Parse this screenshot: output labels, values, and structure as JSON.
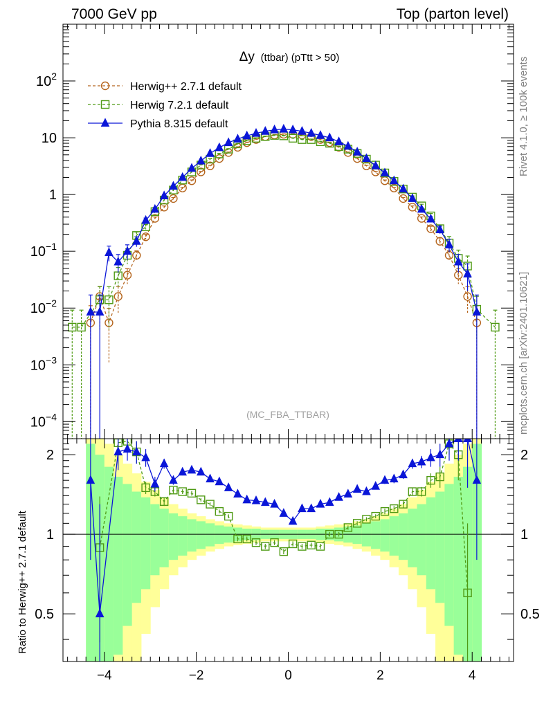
{
  "chart_data": {
    "type": "line",
    "header": {
      "left": "7000 GeV pp",
      "right": "Top (parton level)"
    },
    "title_main": "Δy",
    "title_sub": "(ttbar) (pTtt > 50)",
    "watermark": "(MC_FBA_TTBAR)",
    "side_text_top": "Rivet 4.1.0, ≥ 100k events",
    "side_text_bottom": "mcplots.cern.ch [arXiv:2401.10621]",
    "ratio_ylabel": "Ratio to Herwig++ 2.7.1 default",
    "xlim": [
      -4.9,
      4.9
    ],
    "ylim_log": [
      5e-05,
      1000
    ],
    "ratio_ylim": [
      0.33,
      2.3
    ],
    "x_ticks": [
      {
        "v": -4,
        "label": "−4"
      },
      {
        "v": -2,
        "label": "−2"
      },
      {
        "v": 0,
        "label": "0"
      },
      {
        "v": 2,
        "label": "2"
      },
      {
        "v": 4,
        "label": "4"
      }
    ],
    "y_ticks": [
      {
        "v": 100,
        "base": "10",
        "exp": "2"
      },
      {
        "v": 10,
        "base": "10",
        "exp": ""
      },
      {
        "v": 1,
        "base": "1",
        "exp": ""
      },
      {
        "v": 0.1,
        "base": "10",
        "exp": "−1"
      },
      {
        "v": 0.01,
        "base": "10",
        "exp": "−2"
      },
      {
        "v": 0.001,
        "base": "10",
        "exp": "−3"
      },
      {
        "v": 0.0001,
        "base": "10",
        "exp": "−4"
      }
    ],
    "ratio_ticks": [
      {
        "v": 2,
        "label": "2"
      },
      {
        "v": 1,
        "label": "1"
      },
      {
        "v": 0.5,
        "label": "0.5"
      }
    ],
    "series": [
      {
        "name": "Herwig++ 2.7.1 default",
        "color": "#b5651d",
        "marker": "circle",
        "dash": true,
        "x": [
          -4.3,
          -4.1,
          -3.9,
          -3.7,
          -3.5,
          -3.3,
          -3.1,
          -2.9,
          -2.7,
          -2.5,
          -2.3,
          -2.1,
          -1.9,
          -1.7,
          -1.5,
          -1.3,
          -1.1,
          -0.9,
          -0.7,
          -0.5,
          -0.3,
          -0.1,
          0.1,
          0.3,
          0.5,
          0.7,
          0.9,
          1.1,
          1.3,
          1.5,
          1.7,
          1.9,
          2.1,
          2.3,
          2.5,
          2.7,
          2.9,
          3.1,
          3.3,
          3.5,
          3.7,
          3.9,
          4.1
        ],
        "y": [
          0.0055,
          0.016,
          0.0055,
          0.016,
          0.038,
          0.085,
          0.18,
          0.38,
          0.6,
          0.85,
          1.3,
          1.75,
          2.5,
          3.2,
          4.3,
          5.5,
          6.8,
          8.2,
          9.3,
          10.5,
          11.2,
          11.5,
          11.5,
          11.2,
          10.5,
          9.3,
          8.2,
          6.8,
          5.5,
          4.3,
          3.2,
          2.5,
          1.75,
          1.3,
          0.85,
          0.6,
          0.38,
          0.25,
          0.15,
          0.085,
          0.038,
          0.016,
          0.0055
        ],
        "err": [
          1.0,
          0.5,
          0.8,
          0.5,
          0.3,
          0.2,
          0.1,
          0.06,
          0.05,
          0.04,
          0.03,
          0.03,
          0.02,
          0.02,
          0.02,
          0.02,
          0.02,
          0.02,
          0.02,
          0.02,
          0.02,
          0.02,
          0.02,
          0.02,
          0.02,
          0.02,
          0.02,
          0.02,
          0.02,
          0.02,
          0.02,
          0.02,
          0.03,
          0.03,
          0.04,
          0.05,
          0.06,
          0.1,
          0.15,
          0.2,
          0.3,
          0.5,
          1.0
        ]
      },
      {
        "name": "Herwig 7.2.1 default",
        "color": "#4f9a14",
        "marker": "square",
        "dash": true,
        "x": [
          -4.7,
          -4.5,
          -4.1,
          -3.9,
          -3.7,
          -3.5,
          -3.3,
          -3.1,
          -2.9,
          -2.7,
          -2.5,
          -2.3,
          -2.1,
          -1.9,
          -1.7,
          -1.5,
          -1.3,
          -1.1,
          -0.9,
          -0.7,
          -0.5,
          -0.3,
          -0.1,
          0.1,
          0.3,
          0.5,
          0.7,
          0.9,
          1.1,
          1.3,
          1.5,
          1.7,
          1.9,
          2.1,
          2.3,
          2.5,
          2.7,
          2.9,
          3.1,
          3.3,
          3.5,
          3.7,
          3.9,
          4.1,
          4.5
        ],
        "y": [
          0.0046,
          0.0046,
          0.014,
          0.014,
          0.037,
          0.085,
          0.19,
          0.27,
          0.5,
          0.8,
          1.2,
          1.8,
          2.5,
          3.3,
          4.2,
          5.2,
          6.3,
          7.8,
          8.9,
          9.8,
          10.5,
          11.0,
          10.8,
          9.8,
          9.3,
          9.3,
          8.5,
          8.0,
          7.0,
          6.3,
          5.3,
          4.2,
          3.3,
          2.4,
          1.7,
          1.25,
          0.9,
          0.63,
          0.42,
          0.25,
          0.14,
          0.075,
          0.055,
          0.0095,
          0.0046
        ],
        "err": [
          1.0,
          1.0,
          0.7,
          0.7,
          0.4,
          0.3,
          0.15,
          0.1,
          0.07,
          0.05,
          0.04,
          0.03,
          0.03,
          0.02,
          0.02,
          0.02,
          0.02,
          0.02,
          0.02,
          0.02,
          0.02,
          0.02,
          0.02,
          0.02,
          0.02,
          0.02,
          0.02,
          0.02,
          0.02,
          0.02,
          0.02,
          0.02,
          0.02,
          0.03,
          0.03,
          0.04,
          0.05,
          0.07,
          0.1,
          0.15,
          0.3,
          0.4,
          0.5,
          0.7,
          1.0
        ]
      },
      {
        "name": "Pythia 8.315 default",
        "color": "#0a16d8",
        "marker": "triangle",
        "dash": false,
        "x": [
          -4.3,
          -4.1,
          -3.9,
          -3.7,
          -3.5,
          -3.3,
          -3.1,
          -2.9,
          -2.7,
          -2.5,
          -2.3,
          -2.1,
          -1.9,
          -1.7,
          -1.5,
          -1.3,
          -1.1,
          -0.9,
          -0.7,
          -0.5,
          -0.3,
          -0.1,
          0.1,
          0.3,
          0.5,
          0.7,
          0.9,
          1.1,
          1.3,
          1.5,
          1.7,
          1.9,
          2.1,
          2.3,
          2.5,
          2.7,
          2.9,
          3.1,
          3.3,
          3.5,
          3.7,
          3.9,
          4.1
        ],
        "y": [
          0.0085,
          0.0085,
          0.095,
          0.065,
          0.1,
          0.15,
          0.35,
          0.55,
          0.95,
          1.4,
          2.0,
          2.9,
          3.9,
          5.3,
          6.7,
          8.2,
          9.5,
          10.8,
          12.0,
          13.0,
          13.8,
          14.2,
          13.8,
          13.0,
          12.0,
          11.0,
          10.0,
          8.5,
          7.1,
          5.6,
          4.3,
          3.2,
          2.4,
          1.75,
          1.25,
          0.85,
          0.55,
          0.37,
          0.24,
          0.13,
          0.065,
          0.04,
          0.0085
        ],
        "err": [
          1.0,
          1.0,
          0.3,
          0.35,
          0.3,
          0.2,
          0.1,
          0.07,
          0.05,
          0.04,
          0.03,
          0.03,
          0.02,
          0.02,
          0.02,
          0.02,
          0.02,
          0.02,
          0.02,
          0.02,
          0.02,
          0.02,
          0.02,
          0.02,
          0.02,
          0.02,
          0.02,
          0.02,
          0.02,
          0.02,
          0.02,
          0.02,
          0.03,
          0.03,
          0.04,
          0.05,
          0.07,
          0.1,
          0.15,
          0.25,
          0.35,
          0.5,
          1.0
        ]
      }
    ],
    "ratio_series": [
      {
        "name": "Herwig 7.2.1 default",
        "color": "#4f9a14",
        "marker": "square",
        "x": [
          -4.1,
          -3.7,
          -3.5,
          -3.3,
          -3.1,
          -2.9,
          -2.7,
          -2.5,
          -2.3,
          -2.1,
          -1.9,
          -1.7,
          -1.5,
          -1.3,
          -1.1,
          -0.9,
          -0.7,
          -0.5,
          -0.3,
          -0.1,
          0.1,
          0.3,
          0.5,
          0.7,
          0.9,
          1.1,
          1.3,
          1.5,
          1.7,
          1.9,
          2.1,
          2.3,
          2.5,
          2.7,
          2.9,
          3.1,
          3.3,
          3.5,
          3.7,
          3.9
        ],
        "y": [
          0.89,
          2.22,
          2.25,
          2.05,
          1.5,
          1.45,
          1.33,
          1.47,
          1.45,
          1.43,
          1.35,
          1.3,
          1.22,
          1.17,
          0.96,
          0.96,
          0.93,
          0.9,
          0.93,
          0.86,
          0.92,
          0.9,
          0.91,
          0.9,
          1.0,
          1.0,
          1.06,
          1.1,
          1.14,
          1.17,
          1.22,
          1.25,
          1.3,
          1.45,
          1.45,
          1.6,
          1.65,
          2.2,
          2.0,
          0.6
        ],
        "err": [
          0.5,
          0.2,
          0.2,
          0.2,
          0.08,
          0.06,
          0.05,
          0.04,
          0.03,
          0.03,
          0.02,
          0.02,
          0.02,
          0.02,
          0.02,
          0.02,
          0.02,
          0.02,
          0.02,
          0.02,
          0.02,
          0.02,
          0.02,
          0.02,
          0.02,
          0.02,
          0.02,
          0.02,
          0.02,
          0.02,
          0.03,
          0.03,
          0.04,
          0.05,
          0.06,
          0.1,
          0.15,
          0.2,
          0.4,
          0.5
        ]
      },
      {
        "name": "Pythia 8.315 default",
        "color": "#0a16d8",
        "marker": "triangle",
        "x": [
          -4.3,
          -4.1,
          -3.7,
          -3.5,
          -3.3,
          -3.1,
          -2.9,
          -2.7,
          -2.5,
          -2.3,
          -2.1,
          -1.9,
          -1.7,
          -1.5,
          -1.3,
          -1.1,
          -0.9,
          -0.7,
          -0.5,
          -0.3,
          -0.1,
          0.1,
          0.3,
          0.5,
          0.7,
          0.9,
          1.1,
          1.3,
          1.5,
          1.7,
          1.9,
          2.1,
          2.3,
          2.5,
          2.7,
          2.9,
          3.1,
          3.3,
          3.5,
          3.7,
          3.9,
          4.1
        ],
        "y": [
          1.6,
          0.5,
          2.05,
          2.1,
          2.05,
          1.95,
          1.55,
          1.85,
          1.6,
          1.72,
          1.75,
          1.72,
          1.62,
          1.58,
          1.5,
          1.42,
          1.35,
          1.34,
          1.32,
          1.3,
          1.2,
          1.12,
          1.25,
          1.25,
          1.3,
          1.32,
          1.38,
          1.42,
          1.48,
          1.45,
          1.52,
          1.6,
          1.62,
          1.68,
          1.85,
          1.88,
          1.95,
          2.0,
          2.2,
          2.3,
          2.3,
          1.6
        ],
        "err": [
          0.8,
          0.8,
          0.3,
          0.2,
          0.2,
          0.15,
          0.1,
          0.08,
          0.06,
          0.05,
          0.04,
          0.03,
          0.03,
          0.03,
          0.03,
          0.02,
          0.02,
          0.02,
          0.02,
          0.02,
          0.02,
          0.02,
          0.02,
          0.02,
          0.02,
          0.02,
          0.03,
          0.03,
          0.03,
          0.03,
          0.04,
          0.05,
          0.06,
          0.06,
          0.08,
          0.1,
          0.15,
          0.2,
          0.3,
          0.4,
          0.8,
          0.8
        ]
      }
    ],
    "uncertainty_bands": {
      "green_color": "#99ff99",
      "yellow_color": "#ffff99",
      "centers": [
        -4.3,
        -4.1,
        -3.9,
        -3.7,
        -3.5,
        -3.3,
        -3.1,
        -2.9,
        -2.7,
        -2.5,
        -2.3,
        -2.1,
        -1.9,
        -1.7,
        -1.5,
        -1.3,
        -1.1,
        -0.9,
        -0.7,
        -0.5,
        -0.3,
        -0.1,
        0.1,
        0.3,
        0.5,
        0.7,
        0.9,
        1.1,
        1.3,
        1.5,
        1.7,
        1.9,
        2.1,
        2.3,
        2.5,
        2.7,
        2.9,
        3.1,
        3.3,
        3.5,
        3.7,
        3.9,
        4.1
      ],
      "green_half": [
        1.2,
        1.0,
        0.8,
        0.65,
        0.55,
        0.45,
        0.38,
        0.3,
        0.25,
        0.2,
        0.17,
        0.14,
        0.12,
        0.1,
        0.08,
        0.07,
        0.06,
        0.05,
        0.05,
        0.04,
        0.04,
        0.04,
        0.04,
        0.04,
        0.04,
        0.05,
        0.05,
        0.06,
        0.07,
        0.08,
        0.1,
        0.12,
        0.14,
        0.17,
        0.2,
        0.25,
        0.3,
        0.38,
        0.45,
        0.55,
        0.65,
        0.8,
        1.2
      ],
      "yellow_half": [
        1.5,
        1.4,
        1.2,
        1.0,
        0.85,
        0.7,
        0.58,
        0.47,
        0.38,
        0.3,
        0.25,
        0.2,
        0.17,
        0.14,
        0.12,
        0.1,
        0.09,
        0.08,
        0.07,
        0.06,
        0.06,
        0.06,
        0.06,
        0.06,
        0.06,
        0.07,
        0.08,
        0.09,
        0.1,
        0.12,
        0.14,
        0.17,
        0.2,
        0.25,
        0.3,
        0.38,
        0.47,
        0.58,
        0.7,
        0.85,
        1.0,
        1.2,
        1.5
      ]
    }
  }
}
